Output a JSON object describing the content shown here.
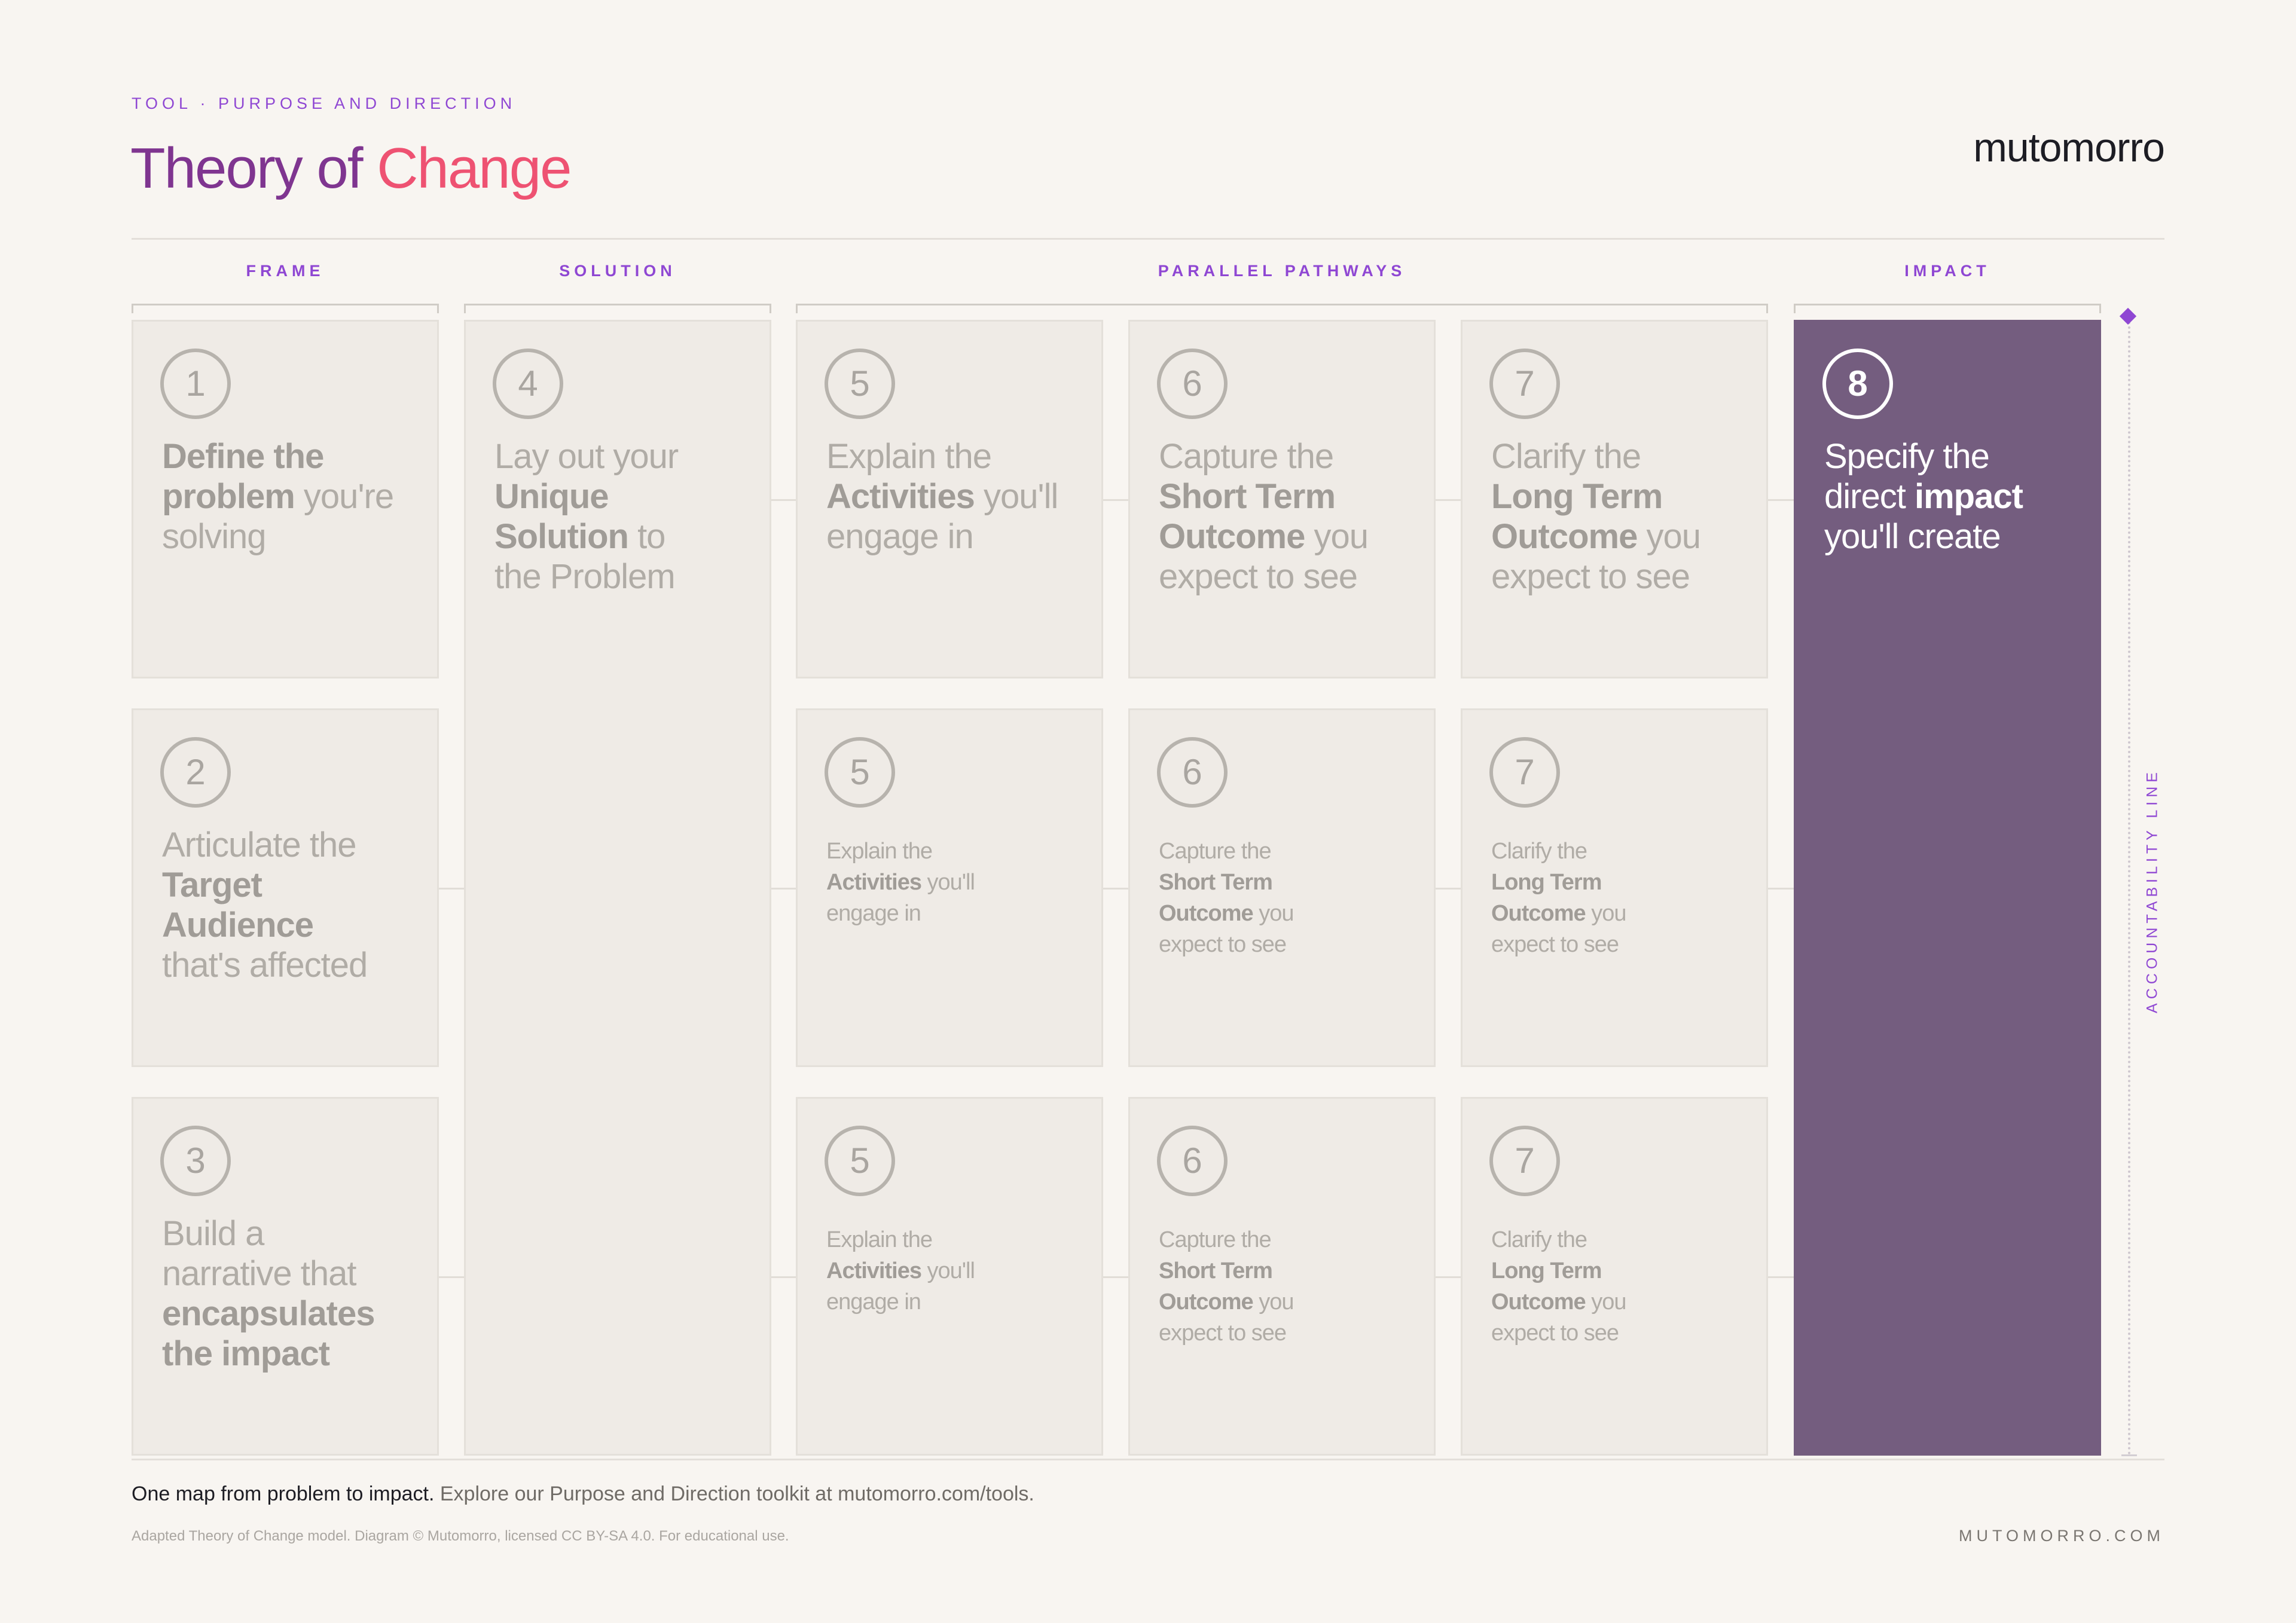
{
  "header": {
    "eyebrow": "TOOL · PURPOSE AND DIRECTION",
    "title_part1": "Theory of",
    "title_part2": " Change",
    "brand": "mutomorro"
  },
  "groups": [
    "FRAME",
    "SOLUTION",
    "PARALLEL PATHWAYS",
    "IMPACT"
  ],
  "accountability_label": "ACCOUNTABILITY LINE",
  "boxes": {
    "b1": {
      "number": "1",
      "lines": [
        [
          [
            "Define the",
            true
          ]
        ],
        [
          [
            "problem",
            true
          ],
          [
            " you're",
            false
          ]
        ],
        [
          [
            "solving",
            false
          ]
        ]
      ]
    },
    "b2": {
      "number": "2",
      "lines": [
        [
          [
            "Articulate the",
            false
          ]
        ],
        [
          [
            "Target",
            true
          ]
        ],
        [
          [
            "Audience",
            true
          ]
        ],
        [
          [
            "that's affected",
            false
          ]
        ]
      ]
    },
    "b3": {
      "number": "3",
      "lines": [
        [
          [
            "Build a",
            false
          ]
        ],
        [
          [
            "narrative that",
            false
          ]
        ],
        [
          [
            "encapsulates",
            true
          ]
        ],
        [
          [
            "the impact",
            true
          ]
        ]
      ]
    },
    "b4": {
      "number": "4",
      "lines": [
        [
          [
            "Lay out your",
            false
          ]
        ],
        [
          [
            "Unique",
            true
          ]
        ],
        [
          [
            "Solution",
            true
          ],
          [
            " to",
            false
          ]
        ],
        [
          [
            "the Problem",
            false
          ]
        ]
      ]
    },
    "b5a": {
      "number": "5",
      "lines": [
        [
          [
            "Explain the",
            false
          ]
        ],
        [
          [
            "Activities",
            true
          ],
          [
            " you'll",
            false
          ]
        ],
        [
          [
            "engage in",
            false
          ]
        ]
      ]
    },
    "b6a": {
      "number": "6",
      "lines": [
        [
          [
            "Capture the",
            false
          ]
        ],
        [
          [
            "Short Term",
            true
          ]
        ],
        [
          [
            "Outcome",
            true
          ],
          [
            " you",
            false
          ]
        ],
        [
          [
            "expect to see",
            false
          ]
        ]
      ]
    },
    "b7a": {
      "number": "7",
      "lines": [
        [
          [
            "Clarify the",
            false
          ]
        ],
        [
          [
            "Long Term",
            true
          ]
        ],
        [
          [
            "Outcome",
            true
          ],
          [
            " you",
            false
          ]
        ],
        [
          [
            "expect to see",
            false
          ]
        ]
      ]
    },
    "b5b": {
      "number": "5",
      "lines": [
        [
          [
            "Explain the",
            false
          ]
        ],
        [
          [
            "Activities",
            true
          ],
          [
            " you'll",
            false
          ]
        ],
        [
          [
            "engage in",
            false
          ]
        ]
      ]
    },
    "b6b": {
      "number": "6",
      "lines": [
        [
          [
            "Capture the",
            false
          ]
        ],
        [
          [
            "Short Term",
            true
          ]
        ],
        [
          [
            "Outcome",
            true
          ],
          [
            " you",
            false
          ]
        ],
        [
          [
            "expect to see",
            false
          ]
        ]
      ]
    },
    "b7b": {
      "number": "7",
      "lines": [
        [
          [
            "Clarify the",
            false
          ]
        ],
        [
          [
            "Long Term",
            true
          ]
        ],
        [
          [
            "Outcome",
            true
          ],
          [
            " you",
            false
          ]
        ],
        [
          [
            "expect to see",
            false
          ]
        ]
      ]
    },
    "b5c": {
      "number": "5",
      "lines": [
        [
          [
            "Explain the",
            false
          ]
        ],
        [
          [
            "Activities",
            true
          ],
          [
            " you'll",
            false
          ]
        ],
        [
          [
            "engage in",
            false
          ]
        ]
      ]
    },
    "b6c": {
      "number": "6",
      "lines": [
        [
          [
            "Capture the",
            false
          ]
        ],
        [
          [
            "Short Term",
            true
          ]
        ],
        [
          [
            "Outcome",
            true
          ],
          [
            " you",
            false
          ]
        ],
        [
          [
            "expect to see",
            false
          ]
        ]
      ]
    },
    "b7c": {
      "number": "7",
      "lines": [
        [
          [
            "Clarify the",
            false
          ]
        ],
        [
          [
            "Long Term",
            true
          ]
        ],
        [
          [
            "Outcome",
            true
          ],
          [
            " you",
            false
          ]
        ],
        [
          [
            "expect to see",
            false
          ]
        ]
      ]
    },
    "b8": {
      "number": "8",
      "lines": [
        [
          [
            "Specify the",
            false
          ]
        ],
        [
          [
            "direct ",
            false
          ],
          [
            "impact",
            true
          ]
        ],
        [
          [
            "you'll create",
            false
          ]
        ]
      ]
    }
  },
  "footer": {
    "lead_strong": "One map from problem to impact.",
    "lead_rest": " Explore our Purpose and Direction toolkit at mutomorro.com/tools.",
    "legal": "Adapted Theory of Change model. Diagram © Mutomorro, licensed CC BY-SA 4.0. For educational use.",
    "url": "MUTOMORRO.COM"
  },
  "colors": {
    "accent": "#8f47d3",
    "impact_fill": "#745d7f",
    "box_fill": "#efebe6",
    "title_gradient_start": "#7f3590",
    "title_gradient_end": "#f77c4a"
  }
}
